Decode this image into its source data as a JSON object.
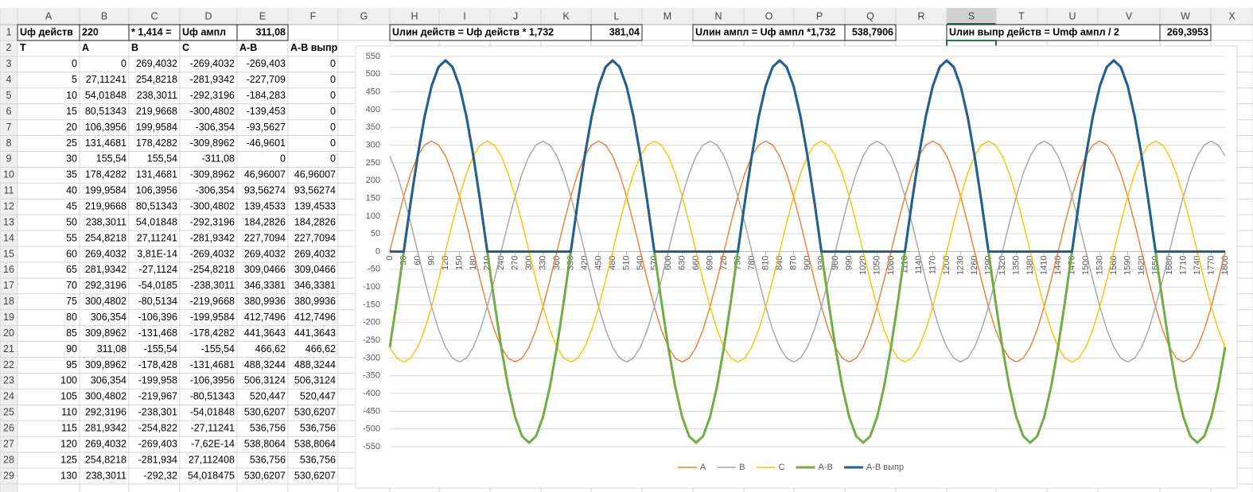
{
  "sheet": {
    "column_headers": [
      "A",
      "B",
      "C",
      "D",
      "E",
      "F",
      "G",
      "H",
      "I",
      "J",
      "K",
      "L",
      "M",
      "N",
      "O",
      "P",
      "Q",
      "R",
      "S",
      "T",
      "U",
      "V",
      "W",
      "X"
    ],
    "row_headers": [
      1,
      2,
      3,
      4,
      5,
      6,
      7,
      8,
      9,
      10,
      11,
      12,
      13,
      14,
      15,
      16,
      17,
      18,
      19,
      20,
      21,
      22,
      23,
      24,
      25,
      26,
      27,
      28,
      29
    ],
    "row1": [
      "Uф действ",
      "220",
      "* 1,414 =",
      "Uф ампл",
      "311,08",
      "Uлин действ = Uф действ * 1,732",
      "381,04",
      "Uлин ампл = Uф ампл *1,732",
      "538,7906",
      "Uлин выпр действ = Umф ампл / 2",
      "269,3953"
    ],
    "header_row": [
      "T",
      "A",
      "B",
      "C",
      "A-B",
      "A-B выпр"
    ],
    "rows": [
      [
        "0",
        "0",
        "269,4032",
        "-269,4032",
        "-269,403",
        "0"
      ],
      [
        "5",
        "27,11241",
        "254,8218",
        "-281,9342",
        "-227,709",
        "0"
      ],
      [
        "10",
        "54,01848",
        "238,3011",
        "-292,3196",
        "-184,283",
        "0"
      ],
      [
        "15",
        "80,51343",
        "219,9668",
        "-300,4802",
        "-139,453",
        "0"
      ],
      [
        "20",
        "106,3956",
        "199,9584",
        "-306,354",
        "-93,5627",
        "0"
      ],
      [
        "25",
        "131,4681",
        "178,4282",
        "-309,8962",
        "-46,9601",
        "0"
      ],
      [
        "30",
        "155,54",
        "155,54",
        "-311,08",
        "0",
        "0"
      ],
      [
        "35",
        "178,4282",
        "131,4681",
        "-309,8962",
        "46,96007",
        "46,96007"
      ],
      [
        "40",
        "199,9584",
        "106,3956",
        "-306,354",
        "93,56274",
        "93,56274"
      ],
      [
        "45",
        "219,9668",
        "80,51343",
        "-300,4802",
        "139,4533",
        "139,4533"
      ],
      [
        "50",
        "238,3011",
        "54,01848",
        "-292,3196",
        "184,2826",
        "184,2826"
      ],
      [
        "55",
        "254,8218",
        "27,11241",
        "-281,9342",
        "227,7094",
        "227,7094"
      ],
      [
        "60",
        "269,4032",
        "3,81E-14",
        "-269,4032",
        "269,4032",
        "269,4032"
      ],
      [
        "65",
        "281,9342",
        "-27,1124",
        "-254,8218",
        "309,0466",
        "309,0466"
      ],
      [
        "70",
        "292,3196",
        "-54,0185",
        "-238,3011",
        "346,3381",
        "346,3381"
      ],
      [
        "75",
        "300,4802",
        "-80,5134",
        "-219,9668",
        "380,9936",
        "380,9936"
      ],
      [
        "80",
        "306,354",
        "-106,396",
        "-199,9584",
        "412,7496",
        "412,7496"
      ],
      [
        "85",
        "309,8962",
        "-131,468",
        "-178,4282",
        "441,3643",
        "441,3643"
      ],
      [
        "90",
        "311,08",
        "-155,54",
        "-155,54",
        "466,62",
        "466,62"
      ],
      [
        "95",
        "309,8962",
        "-178,428",
        "-131,4681",
        "488,3244",
        "488,3244"
      ],
      [
        "100",
        "306,354",
        "-199,958",
        "-106,3956",
        "506,3124",
        "506,3124"
      ],
      [
        "105",
        "300,4802",
        "-219,967",
        "-80,51343",
        "520,447",
        "520,447"
      ],
      [
        "110",
        "292,3196",
        "-238,301",
        "-54,01848",
        "530,6207",
        "530,6207"
      ],
      [
        "115",
        "281,9342",
        "-254,822",
        "-27,11241",
        "536,756",
        "536,756"
      ],
      [
        "120",
        "269,4032",
        "-269,403",
        "-7,62E-14",
        "538,8064",
        "538,8064"
      ],
      [
        "125",
        "254,8218",
        "-281,934",
        "27,112408",
        "536,756",
        "536,756"
      ],
      [
        "130",
        "238,3011",
        "-292,32",
        "54,018475",
        "530,6207",
        "530,6207"
      ]
    ]
  },
  "chart_data": {
    "type": "line",
    "x": [
      0,
      15,
      30,
      45,
      60,
      75,
      90,
      105,
      120,
      135,
      150,
      165,
      180,
      195,
      210,
      225,
      240,
      255,
      270,
      285,
      300,
      315,
      330,
      345,
      360,
      375,
      390,
      405,
      420,
      435,
      450,
      465,
      480,
      495,
      510,
      525,
      540,
      555,
      570,
      585,
      600,
      615,
      630,
      645,
      660,
      675,
      690,
      705,
      720,
      735,
      750,
      765,
      780,
      795,
      810,
      825,
      840,
      855,
      870,
      885,
      900,
      915,
      930,
      945,
      960,
      975,
      990,
      1005,
      1020,
      1035,
      1050,
      1065,
      1080,
      1095,
      1110,
      1125,
      1140,
      1155,
      1170,
      1185,
      1200,
      1215,
      1230,
      1245,
      1260,
      1275,
      1290,
      1305,
      1320,
      1335,
      1350,
      1365,
      1380,
      1395,
      1410,
      1425,
      1440,
      1455,
      1470,
      1485,
      1500,
      1515,
      1530,
      1545,
      1560,
      1575,
      1590,
      1605,
      1620,
      1635,
      1650,
      1665,
      1680,
      1695,
      1710,
      1725,
      1740,
      1755,
      1770,
      1785,
      1800
    ],
    "xlim": [
      0,
      1800
    ],
    "xticks": [
      0,
      30,
      60,
      90,
      120,
      150,
      180,
      210,
      240,
      270,
      300,
      330,
      360,
      390,
      420,
      450,
      480,
      510,
      540,
      570,
      600,
      630,
      660,
      690,
      720,
      750,
      780,
      810,
      840,
      870,
      900,
      930,
      960,
      990,
      1020,
      1050,
      1080,
      1110,
      1140,
      1170,
      1200,
      1230,
      1260,
      1290,
      1320,
      1350,
      1380,
      1410,
      1440,
      1470,
      1500,
      1530,
      1560,
      1590,
      1620,
      1650,
      1680,
      1710,
      1740,
      1770,
      1800
    ],
    "ylim": [
      -550,
      550
    ],
    "yticks": [
      -550,
      -500,
      -450,
      -400,
      -350,
      -300,
      -250,
      -200,
      -150,
      -100,
      -50,
      0,
      50,
      100,
      150,
      200,
      250,
      300,
      350,
      400,
      450,
      500,
      550
    ],
    "grid": true,
    "legend": "bottom",
    "series": [
      {
        "name": "A",
        "color": "#ed7d31",
        "values": [
          0,
          80.51,
          155.54,
          219.97,
          269.4,
          300.48,
          311.08,
          300.48,
          269.4,
          219.97,
          155.54,
          80.51,
          0,
          -80.51,
          -155.54,
          -219.97,
          -269.4,
          -300.48,
          -311.08,
          -300.48,
          -269.4,
          -219.97,
          -155.54,
          -80.51,
          0,
          80.51,
          155.54,
          219.97,
          269.4,
          300.48,
          311.08,
          300.48,
          269.4,
          219.97,
          155.54,
          80.51,
          0,
          -80.51,
          -155.54,
          -219.97,
          -269.4,
          -300.48,
          -311.08,
          -300.48,
          -269.4,
          -219.97,
          -155.54,
          -80.51,
          0,
          80.51,
          155.54,
          219.97,
          269.4,
          300.48,
          311.08,
          300.48,
          269.4,
          219.97,
          155.54,
          80.51,
          0,
          -80.51,
          -155.54,
          -219.97,
          -269.4,
          -300.48,
          -311.08,
          -300.48,
          -269.4,
          -219.97,
          -155.54,
          -80.51,
          0,
          80.51,
          155.54,
          219.97,
          269.4,
          300.48,
          311.08,
          300.48,
          269.4,
          219.97,
          155.54,
          80.51,
          0,
          -80.51,
          -155.54,
          -219.97,
          -269.4,
          -300.48,
          -311.08,
          -300.48,
          -269.4,
          -219.97,
          -155.54,
          -80.51,
          0,
          80.51,
          155.54,
          219.97,
          269.4,
          300.48,
          311.08,
          300.48,
          269.4,
          219.97,
          155.54,
          80.51,
          0,
          -80.51,
          -155.54,
          -219.97,
          -269.4,
          -300.48,
          -311.08,
          -300.48,
          -269.4,
          -219.97,
          -155.54,
          -80.51,
          0
        ]
      },
      {
        "name": "B",
        "color": "#a5a5a5",
        "values": [
          269.4,
          219.97,
          155.54,
          80.51,
          0,
          -80.51,
          -155.54,
          -219.97,
          -269.4,
          -300.48,
          -311.08,
          -300.48,
          -269.4,
          -219.97,
          -155.54,
          -80.51,
          0,
          80.51,
          155.54,
          219.97,
          269.4,
          300.48,
          311.08,
          300.48,
          269.4,
          219.97,
          155.54,
          80.51,
          0,
          -80.51,
          -155.54,
          -219.97,
          -269.4,
          -300.48,
          -311.08,
          -300.48,
          -269.4,
          -219.97,
          -155.54,
          -80.51,
          0,
          80.51,
          155.54,
          219.97,
          269.4,
          300.48,
          311.08,
          300.48,
          269.4,
          219.97,
          155.54,
          80.51,
          0,
          -80.51,
          -155.54,
          -219.97,
          -269.4,
          -300.48,
          -311.08,
          -300.48,
          -269.4,
          -219.97,
          -155.54,
          -80.51,
          0,
          80.51,
          155.54,
          219.97,
          269.4,
          300.48,
          311.08,
          300.48,
          269.4,
          219.97,
          155.54,
          80.51,
          0,
          -80.51,
          -155.54,
          -219.97,
          -269.4,
          -300.48,
          -311.08,
          -300.48,
          -269.4,
          -219.97,
          -155.54,
          -80.51,
          0,
          80.51,
          155.54,
          219.97,
          269.4,
          300.48,
          311.08,
          300.48,
          269.4,
          219.97,
          155.54,
          80.51,
          0,
          -80.51,
          -155.54,
          -219.97,
          -269.4,
          -300.48,
          -311.08,
          -300.48,
          -269.4,
          -219.97,
          -155.54,
          -80.51,
          0,
          80.51,
          155.54,
          219.97,
          269.4,
          300.48,
          311.08,
          300.48,
          269.4
        ]
      },
      {
        "name": "C",
        "color": "#ffc000",
        "values": [
          -269.4,
          -300.48,
          -311.08,
          -300.48,
          -269.4,
          -219.97,
          -155.54,
          -80.51,
          0,
          80.51,
          155.54,
          219.97,
          269.4,
          300.48,
          311.08,
          300.48,
          269.4,
          219.97,
          155.54,
          80.51,
          0,
          -80.51,
          -155.54,
          -219.97,
          -269.4,
          -300.48,
          -311.08,
          -300.48,
          -269.4,
          -219.97,
          -155.54,
          -80.51,
          0,
          80.51,
          155.54,
          219.97,
          269.4,
          300.48,
          311.08,
          300.48,
          269.4,
          219.97,
          155.54,
          80.51,
          0,
          -80.51,
          -155.54,
          -219.97,
          -269.4,
          -300.48,
          -311.08,
          -300.48,
          -269.4,
          -219.97,
          -155.54,
          -80.51,
          0,
          80.51,
          155.54,
          219.97,
          269.4,
          300.48,
          311.08,
          300.48,
          269.4,
          219.97,
          155.54,
          80.51,
          0,
          -80.51,
          -155.54,
          -219.97,
          -269.4,
          -300.48,
          -311.08,
          -300.48,
          -269.4,
          -219.97,
          -155.54,
          -80.51,
          0,
          80.51,
          155.54,
          219.97,
          269.4,
          300.48,
          311.08,
          300.48,
          269.4,
          219.97,
          155.54,
          80.51,
          0,
          -80.51,
          -155.54,
          -219.97,
          -269.4,
          -300.48,
          -311.08,
          -300.48,
          -269.4,
          -219.97,
          -155.54,
          -80.51,
          0,
          80.51,
          155.54,
          219.97,
          269.4,
          300.48,
          311.08,
          300.48,
          269.4,
          219.97,
          155.54,
          80.51,
          0,
          -80.51,
          -155.54,
          -219.97,
          -269.4
        ]
      },
      {
        "name": "A-B",
        "color": "#70ad47",
        "values": [
          -269.4,
          -139.45,
          0,
          139.45,
          269.4,
          380.99,
          466.62,
          520.45,
          538.81,
          520.45,
          466.62,
          380.99,
          269.4,
          139.45,
          0,
          -139.45,
          -269.4,
          -380.99,
          -466.62,
          -520.45,
          -538.81,
          -520.45,
          -466.62,
          -380.99,
          -269.4,
          -139.45,
          0,
          139.45,
          269.4,
          380.99,
          466.62,
          520.45,
          538.81,
          520.45,
          466.62,
          380.99,
          269.4,
          139.45,
          0,
          -139.45,
          -269.4,
          -380.99,
          -466.62,
          -520.45,
          -538.81,
          -520.45,
          -466.62,
          -380.99,
          -269.4,
          -139.45,
          0,
          139.45,
          269.4,
          380.99,
          466.62,
          520.45,
          538.81,
          520.45,
          466.62,
          380.99,
          269.4,
          139.45,
          0,
          -139.45,
          -269.4,
          -380.99,
          -466.62,
          -520.45,
          -538.81,
          -520.45,
          -466.62,
          -380.99,
          -269.4,
          -139.45,
          0,
          139.45,
          269.4,
          380.99,
          466.62,
          520.45,
          538.81,
          520.45,
          466.62,
          380.99,
          269.4,
          139.45,
          0,
          -139.45,
          -269.4,
          -380.99,
          -466.62,
          -520.45,
          -538.81,
          -520.45,
          -466.62,
          -380.99,
          -269.4,
          -139.45,
          0,
          139.45,
          269.4,
          380.99,
          466.62,
          520.45,
          538.81,
          520.45,
          466.62,
          380.99,
          269.4,
          139.45,
          0,
          -139.45,
          -269.4,
          -380.99,
          -466.62,
          -520.45,
          -538.81,
          -520.45,
          -466.62,
          -380.99,
          -269.4
        ]
      },
      {
        "name": "A-B выпр",
        "color": "#255e91",
        "values": [
          0,
          0,
          0,
          139.45,
          269.4,
          380.99,
          466.62,
          520.45,
          538.81,
          520.45,
          466.62,
          380.99,
          269.4,
          139.45,
          0,
          0,
          0,
          0,
          0,
          0,
          0,
          0,
          0,
          0,
          0,
          0,
          0,
          139.45,
          269.4,
          380.99,
          466.62,
          520.45,
          538.81,
          520.45,
          466.62,
          380.99,
          269.4,
          139.45,
          0,
          0,
          0,
          0,
          0,
          0,
          0,
          0,
          0,
          0,
          0,
          0,
          0,
          139.45,
          269.4,
          380.99,
          466.62,
          520.45,
          538.81,
          520.45,
          466.62,
          380.99,
          269.4,
          139.45,
          0,
          0,
          0,
          0,
          0,
          0,
          0,
          0,
          0,
          0,
          0,
          0,
          0,
          139.45,
          269.4,
          380.99,
          466.62,
          520.45,
          538.81,
          520.45,
          466.62,
          380.99,
          269.4,
          139.45,
          0,
          0,
          0,
          0,
          0,
          0,
          0,
          0,
          0,
          0,
          0,
          0,
          0,
          139.45,
          269.4,
          380.99,
          466.62,
          520.45,
          538.81,
          520.45,
          466.62,
          380.99,
          269.4,
          139.45,
          0,
          0,
          0,
          0,
          0,
          0,
          0,
          0,
          0,
          0,
          0
        ]
      }
    ]
  }
}
